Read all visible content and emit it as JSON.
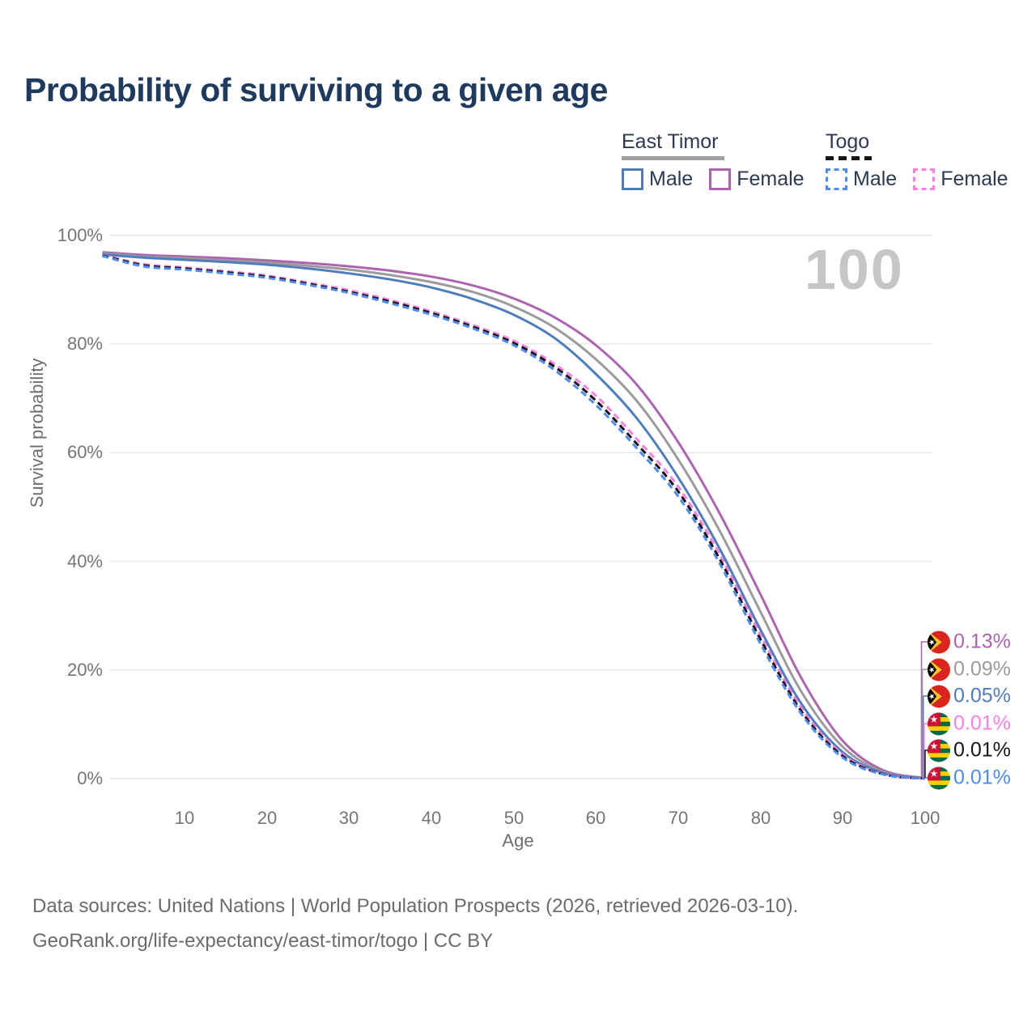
{
  "title": "Probability of surviving to a given age",
  "watermark_age": "100",
  "legend": {
    "groups": [
      {
        "label": "East Timor",
        "line_style": "solid",
        "underline_color": "#a0a0a0",
        "items": [
          {
            "label": "Male",
            "color": "#4e7dbe"
          },
          {
            "label": "Female",
            "color": "#ad64b0"
          }
        ]
      },
      {
        "label": "Togo",
        "line_style": "dashed",
        "underline_color": "#151515",
        "items": [
          {
            "label": "Male",
            "color": "#4e8bf0"
          },
          {
            "label": "Female",
            "color": "#fc7ee3"
          }
        ]
      }
    ]
  },
  "axes": {
    "x": {
      "label": "Age",
      "min": 0,
      "max": 100,
      "ticks": [
        "10",
        "20",
        "30",
        "40",
        "50",
        "60",
        "70",
        "80",
        "90",
        "100"
      ]
    },
    "y": {
      "label": "Survival probability",
      "min": 0,
      "max": 100,
      "ticks": [
        "100%",
        "80%",
        "60%",
        "40%",
        "20%",
        "0%"
      ]
    }
  },
  "footer": {
    "line1": "Data sources: United Nations | World Population Prospects (2026, retrieved 2026-03-10).",
    "line2": "GeoRank.org/life-expectancy/east-timor/togo | CC BY"
  },
  "chart_data": {
    "type": "line",
    "title": "Probability of surviving to a given age",
    "xlabel": "Age",
    "ylabel": "Survival probability",
    "xlim": [
      0,
      100
    ],
    "ylim": [
      0,
      100
    ],
    "grid": "horizontal",
    "legend_position": "top-right",
    "values_unit": "percent",
    "x": [
      0,
      5,
      10,
      15,
      20,
      25,
      30,
      35,
      40,
      45,
      50,
      55,
      60,
      65,
      70,
      75,
      80,
      85,
      90,
      95,
      100
    ],
    "series": [
      {
        "id": "east-timor-female",
        "name": "East Timor Female",
        "country": "East Timor",
        "sex": "Female",
        "color": "#ad64b0",
        "dash": "solid",
        "end_label": "0.13%",
        "flag_ref": "#flag-east-timor",
        "values": [
          96.9,
          96.4,
          96.1,
          95.8,
          95.4,
          94.9,
          94.3,
          93.5,
          92.4,
          90.8,
          88.4,
          84.9,
          79.8,
          72.5,
          62.0,
          49.0,
          34.0,
          18.5,
          7.0,
          1.5,
          0.13
        ]
      },
      {
        "id": "east-timor-both",
        "name": "East Timor Both sexes",
        "country": "East Timor",
        "sex": "Both",
        "color": "#9b9b9b",
        "dash": "solid",
        "end_label": "0.09%",
        "flag_ref": "#flag-east-timor",
        "values": [
          96.7,
          96.1,
          95.8,
          95.4,
          95.0,
          94.4,
          93.7,
          92.7,
          91.4,
          89.6,
          86.9,
          83.0,
          77.2,
          69.5,
          58.8,
          45.8,
          30.8,
          16.0,
          5.9,
          1.2,
          0.09
        ]
      },
      {
        "id": "east-timor-male",
        "name": "East Timor Male",
        "country": "East Timor",
        "sex": "Male",
        "color": "#4e7dbe",
        "dash": "solid",
        "end_label": "0.05%",
        "flag_ref": "#flag-east-timor",
        "values": [
          96.5,
          95.9,
          95.5,
          95.1,
          94.6,
          93.9,
          93.0,
          91.9,
          90.4,
          88.3,
          85.4,
          81.1,
          74.5,
          66.3,
          55.5,
          42.5,
          27.5,
          13.8,
          4.9,
          1.0,
          0.05
        ]
      },
      {
        "id": "togo-female",
        "name": "Togo Female",
        "country": "Togo",
        "sex": "Female",
        "color": "#fc7ee3",
        "dash": "dashed",
        "end_label": "0.01%",
        "flag_ref": "#flag-togo",
        "values": [
          96.4,
          94.7,
          94.1,
          93.4,
          92.6,
          91.3,
          89.9,
          88.1,
          86.0,
          83.5,
          80.6,
          76.3,
          70.5,
          62.5,
          53.8,
          41.5,
          26.5,
          13.0,
          4.5,
          0.85,
          0.01
        ]
      },
      {
        "id": "togo-both",
        "name": "Togo Both sexes",
        "country": "Togo",
        "sex": "Both",
        "color": "#151515",
        "dash": "dashed",
        "end_label": "0.01%",
        "flag_ref": "#flag-togo",
        "values": [
          96.3,
          94.5,
          93.9,
          93.2,
          92.4,
          91.1,
          89.6,
          87.8,
          85.7,
          83.2,
          80.2,
          75.8,
          69.6,
          61.6,
          52.9,
          40.6,
          25.7,
          12.4,
          4.2,
          0.8,
          0.01
        ]
      },
      {
        "id": "togo-male",
        "name": "Togo Male",
        "country": "Togo",
        "sex": "Male",
        "color": "#4e8bf0",
        "dash": "dashed",
        "end_label": "0.01%",
        "flag_ref": "#flag-togo",
        "values": [
          96.2,
          94.3,
          93.7,
          93.0,
          92.2,
          90.9,
          89.4,
          87.5,
          85.4,
          82.9,
          79.8,
          75.2,
          68.8,
          60.8,
          52.0,
          39.8,
          24.9,
          11.9,
          3.9,
          0.75,
          0.01
        ]
      }
    ]
  }
}
